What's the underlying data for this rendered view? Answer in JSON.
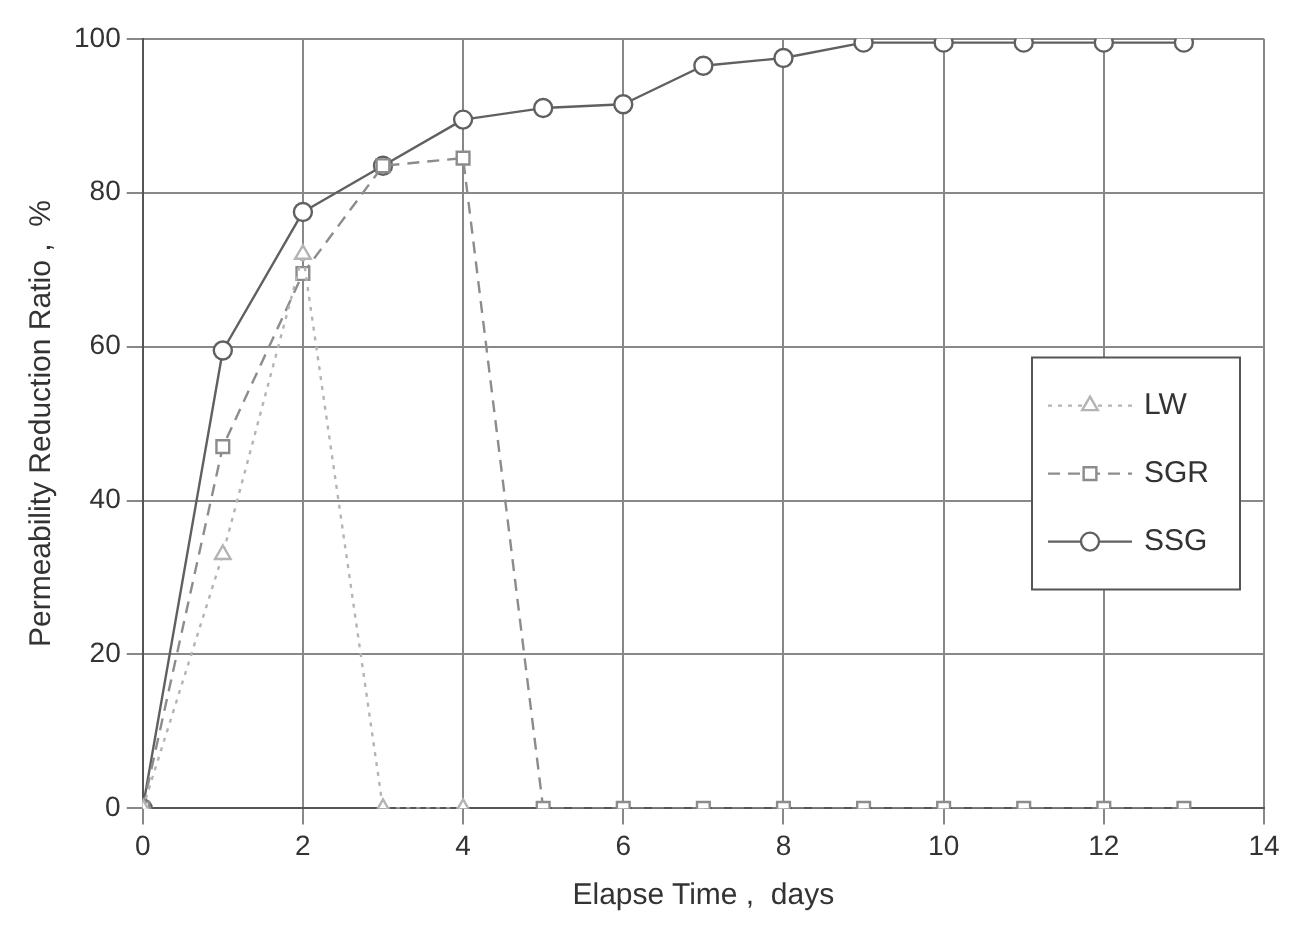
{
  "chart_data": {
    "type": "line",
    "xlabel": "Elapse Time ,  days",
    "ylabel": "Permeability Reduction Ratio ,  %",
    "xlim": [
      0,
      14
    ],
    "xticks": [
      0,
      2,
      4,
      6,
      8,
      10,
      12,
      14
    ],
    "ylim": [
      0,
      100
    ],
    "yticks": [
      0,
      20,
      40,
      60,
      80,
      100
    ],
    "grid": true,
    "legend": "right",
    "series": [
      {
        "name": "LW",
        "color": "#b4b4b4",
        "marker": "triangle",
        "line_style": "dotted",
        "x": [
          0,
          1,
          2,
          3,
          4
        ],
        "values": [
          0,
          33,
          72,
          0,
          0
        ]
      },
      {
        "name": "SGR",
        "color": "#8c8c8c",
        "marker": "square",
        "line_style": "dashed",
        "x": [
          0,
          1,
          2,
          3,
          4,
          5,
          6,
          7,
          8,
          9,
          10,
          11,
          12,
          13
        ],
        "values": [
          0,
          47,
          69.5,
          83.5,
          84.5,
          0,
          0,
          0,
          0,
          0,
          0,
          0,
          0,
          0
        ]
      },
      {
        "name": "SSG",
        "color": "#606060",
        "marker": "circle",
        "line_style": "solid",
        "x": [
          0,
          1,
          2,
          3,
          4,
          5,
          6,
          7,
          8,
          9,
          10,
          11,
          12,
          13
        ],
        "values": [
          0,
          59.5,
          77.5,
          83.5,
          89.5,
          91,
          91.5,
          96.5,
          97.5,
          99.5,
          99.5,
          99.5,
          99.5,
          99.5
        ]
      }
    ]
  }
}
